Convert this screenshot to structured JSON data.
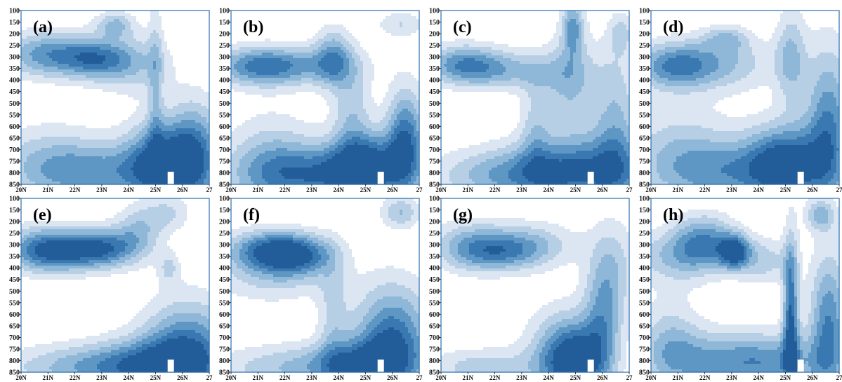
{
  "chart_data": {
    "type": "heatmap",
    "description": "Eight latitude-pressure filled-contour cross sections arranged in a 2x4 grid; blue shading intensity shows field magnitude.",
    "colors": {
      "levels": [
        "#ffffff",
        "#dbe6f2",
        "#b7cfe5",
        "#8fb8d8",
        "#5f97c4",
        "#3a78b1",
        "#225d99"
      ],
      "frame": "#2a6fb0"
    },
    "x_axis": {
      "range": [
        20,
        27
      ],
      "ticks": [
        20,
        21,
        22,
        23,
        24,
        25,
        26,
        27
      ],
      "tick_labels": [
        "20N",
        "21N",
        "22N",
        "23N",
        "24N",
        "25N",
        "26N",
        "27"
      ]
    },
    "y_axis": {
      "range": [
        100,
        850
      ],
      "inverted": true,
      "ticks": [
        100,
        150,
        200,
        250,
        300,
        350,
        400,
        450,
        500,
        550,
        600,
        650,
        700,
        750,
        800,
        850
      ],
      "tick_labels": [
        "100",
        "150",
        "200",
        "250",
        "300",
        "350",
        "400",
        "450",
        "500",
        "550",
        "600",
        "650",
        "700",
        "750",
        "800",
        "850"
      ]
    },
    "panels": [
      {
        "label": "(a)",
        "blobs": [
          {
            "lat": 21.0,
            "p": 290,
            "sx": 1.2,
            "sy": 70,
            "a": 4.5
          },
          {
            "lat": 22.8,
            "p": 310,
            "sx": 0.9,
            "sy": 60,
            "a": 4.0
          },
          {
            "lat": 23.5,
            "p": 160,
            "sx": 0.5,
            "sy": 40,
            "a": 3.0
          },
          {
            "lat": 24.2,
            "p": 330,
            "sx": 1.0,
            "sy": 90,
            "a": 2.5
          },
          {
            "lat": 25.2,
            "p": 760,
            "sx": 0.9,
            "sy": 130,
            "a": 6.0
          },
          {
            "lat": 26.5,
            "p": 730,
            "sx": 0.7,
            "sy": 160,
            "a": 5.0
          },
          {
            "lat": 23.0,
            "p": 800,
            "sx": 1.8,
            "sy": 90,
            "a": 3.5
          },
          {
            "lat": 21.0,
            "p": 760,
            "sx": 1.5,
            "sy": 120,
            "a": 2.5
          },
          {
            "lat": 25.0,
            "p": 420,
            "sx": 0.2,
            "sy": 300,
            "a": 2.0
          }
        ]
      },
      {
        "label": "(b)",
        "blobs": [
          {
            "lat": 21.0,
            "p": 340,
            "sx": 1.2,
            "sy": 60,
            "a": 4.5
          },
          {
            "lat": 23.8,
            "p": 300,
            "sx": 0.5,
            "sy": 90,
            "a": 3.5
          },
          {
            "lat": 22.8,
            "p": 340,
            "sx": 1.5,
            "sy": 60,
            "a": 2.5
          },
          {
            "lat": 23.5,
            "p": 810,
            "sx": 2.2,
            "sy": 90,
            "a": 5.0
          },
          {
            "lat": 25.0,
            "p": 760,
            "sx": 0.9,
            "sy": 100,
            "a": 5.0
          },
          {
            "lat": 26.5,
            "p": 650,
            "sx": 0.5,
            "sy": 150,
            "a": 5.5
          },
          {
            "lat": 24.5,
            "p": 520,
            "sx": 0.5,
            "sy": 140,
            "a": 2.5
          },
          {
            "lat": 26.3,
            "p": 160,
            "sx": 0.6,
            "sy": 40,
            "a": 2.0
          },
          {
            "lat": 21.5,
            "p": 750,
            "sx": 1.2,
            "sy": 150,
            "a": 2.5
          }
        ]
      },
      {
        "label": "(c)",
        "blobs": [
          {
            "lat": 20.8,
            "p": 330,
            "sx": 1.0,
            "sy": 60,
            "a": 4.0
          },
          {
            "lat": 22.5,
            "p": 360,
            "sx": 1.5,
            "sy": 60,
            "a": 3.0
          },
          {
            "lat": 24.9,
            "p": 170,
            "sx": 0.3,
            "sy": 90,
            "a": 4.0
          },
          {
            "lat": 24.8,
            "p": 420,
            "sx": 0.7,
            "sy": 140,
            "a": 3.0
          },
          {
            "lat": 25.3,
            "p": 790,
            "sx": 1.8,
            "sy": 110,
            "a": 5.0
          },
          {
            "lat": 22.5,
            "p": 810,
            "sx": 2.0,
            "sy": 80,
            "a": 3.5
          },
          {
            "lat": 26.7,
            "p": 200,
            "sx": 0.3,
            "sy": 60,
            "a": 2.0
          },
          {
            "lat": 26.5,
            "p": 600,
            "sx": 0.6,
            "sy": 250,
            "a": 3.0
          },
          {
            "lat": 23.5,
            "p": 600,
            "sx": 0.4,
            "sy": 150,
            "a": 2.0
          }
        ]
      },
      {
        "label": "(d)",
        "blobs": [
          {
            "lat": 20.8,
            "p": 340,
            "sx": 1.0,
            "sy": 70,
            "a": 4.0
          },
          {
            "lat": 22.8,
            "p": 220,
            "sx": 0.6,
            "sy": 40,
            "a": 2.5
          },
          {
            "lat": 22.5,
            "p": 330,
            "sx": 1.5,
            "sy": 80,
            "a": 3.0
          },
          {
            "lat": 25.2,
            "p": 300,
            "sx": 0.4,
            "sy": 150,
            "a": 3.0
          },
          {
            "lat": 25.0,
            "p": 760,
            "sx": 1.0,
            "sy": 120,
            "a": 6.0
          },
          {
            "lat": 26.6,
            "p": 620,
            "sx": 0.6,
            "sy": 250,
            "a": 5.0
          },
          {
            "lat": 23.0,
            "p": 800,
            "sx": 1.8,
            "sy": 100,
            "a": 3.5
          },
          {
            "lat": 21.0,
            "p": 720,
            "sx": 1.5,
            "sy": 150,
            "a": 2.5
          }
        ]
      },
      {
        "label": "(e)",
        "blobs": [
          {
            "lat": 20.8,
            "p": 320,
            "sx": 1.0,
            "sy": 70,
            "a": 4.5
          },
          {
            "lat": 22.0,
            "p": 330,
            "sx": 1.2,
            "sy": 60,
            "a": 3.5
          },
          {
            "lat": 23.2,
            "p": 310,
            "sx": 0.9,
            "sy": 60,
            "a": 4.0
          },
          {
            "lat": 24.4,
            "p": 230,
            "sx": 0.6,
            "sy": 80,
            "a": 2.5
          },
          {
            "lat": 25.5,
            "p": 160,
            "sx": 0.6,
            "sy": 60,
            "a": 2.0
          },
          {
            "lat": 26.2,
            "p": 780,
            "sx": 1.2,
            "sy": 160,
            "a": 6.0
          },
          {
            "lat": 24.5,
            "p": 820,
            "sx": 1.5,
            "sy": 80,
            "a": 4.0
          },
          {
            "lat": 22.0,
            "p": 830,
            "sx": 2.0,
            "sy": 70,
            "a": 3.0
          },
          {
            "lat": 25.5,
            "p": 400,
            "sx": 0.3,
            "sy": 50,
            "a": 2.0
          }
        ]
      },
      {
        "label": "(f)",
        "blobs": [
          {
            "lat": 21.2,
            "p": 320,
            "sx": 1.0,
            "sy": 60,
            "a": 4.0
          },
          {
            "lat": 22.5,
            "p": 340,
            "sx": 0.9,
            "sy": 60,
            "a": 5.0
          },
          {
            "lat": 21.5,
            "p": 420,
            "sx": 1.5,
            "sy": 90,
            "a": 2.5
          },
          {
            "lat": 26.3,
            "p": 160,
            "sx": 0.5,
            "sy": 50,
            "a": 3.0
          },
          {
            "lat": 26.0,
            "p": 720,
            "sx": 1.0,
            "sy": 170,
            "a": 6.0
          },
          {
            "lat": 24.8,
            "p": 820,
            "sx": 1.2,
            "sy": 80,
            "a": 3.5
          },
          {
            "lat": 22.5,
            "p": 830,
            "sx": 2.2,
            "sy": 70,
            "a": 3.0
          },
          {
            "lat": 23.8,
            "p": 600,
            "sx": 0.4,
            "sy": 200,
            "a": 2.0
          }
        ]
      },
      {
        "label": "(g)",
        "blobs": [
          {
            "lat": 22.2,
            "p": 330,
            "sx": 1.2,
            "sy": 60,
            "a": 4.0
          },
          {
            "lat": 21.0,
            "p": 300,
            "sx": 1.0,
            "sy": 80,
            "a": 2.5
          },
          {
            "lat": 23.5,
            "p": 290,
            "sx": 1.2,
            "sy": 70,
            "a": 2.0
          },
          {
            "lat": 25.0,
            "p": 800,
            "sx": 0.8,
            "sy": 110,
            "a": 5.0
          },
          {
            "lat": 26.0,
            "p": 620,
            "sx": 0.5,
            "sy": 200,
            "a": 3.5
          },
          {
            "lat": 24.5,
            "p": 780,
            "sx": 1.0,
            "sy": 150,
            "a": 3.0
          },
          {
            "lat": 21.5,
            "p": 830,
            "sx": 1.5,
            "sy": 60,
            "a": 2.5
          },
          {
            "lat": 26.5,
            "p": 400,
            "sx": 0.6,
            "sy": 150,
            "a": 2.0
          }
        ]
      },
      {
        "label": "(h)",
        "blobs": [
          {
            "lat": 22.0,
            "p": 280,
            "sx": 0.8,
            "sy": 80,
            "a": 4.0
          },
          {
            "lat": 23.1,
            "p": 330,
            "sx": 0.4,
            "sy": 50,
            "a": 6.0
          },
          {
            "lat": 21.0,
            "p": 350,
            "sx": 1.2,
            "sy": 80,
            "a": 3.0
          },
          {
            "lat": 24.2,
            "p": 370,
            "sx": 0.7,
            "sy": 70,
            "a": 2.5
          },
          {
            "lat": 25.2,
            "p": 620,
            "sx": 0.2,
            "sy": 250,
            "a": 6.0
          },
          {
            "lat": 26.6,
            "p": 650,
            "sx": 0.5,
            "sy": 220,
            "a": 5.0
          },
          {
            "lat": 26.3,
            "p": 170,
            "sx": 0.4,
            "sy": 50,
            "a": 3.5
          },
          {
            "lat": 24.5,
            "p": 810,
            "sx": 1.5,
            "sy": 90,
            "a": 4.0
          },
          {
            "lat": 22.0,
            "p": 800,
            "sx": 1.5,
            "sy": 90,
            "a": 3.0
          },
          {
            "lat": 20.7,
            "p": 720,
            "sx": 0.8,
            "sy": 140,
            "a": 2.5
          }
        ]
      }
    ]
  }
}
